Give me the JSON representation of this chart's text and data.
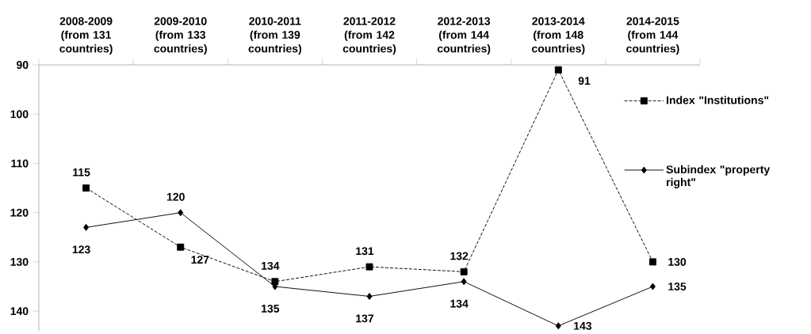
{
  "chart_data": {
    "type": "line",
    "categories": [
      "2008-2009 (from 131 countries)",
      "2009-2010 (from 133 countries)",
      "2010-2011 (from 139 countries)",
      "2011-2012 (from 142 countries)",
      "2012-2013 (from 144 countries)",
      "2013-2014 (from 148 countries)",
      "2014-2015 (from 144 countries)"
    ],
    "series": [
      {
        "name": "Index \"Institutions\"",
        "color": "#000000",
        "marker": "square",
        "line_style": "dashed",
        "values": [
          115,
          127,
          134,
          131,
          132,
          91,
          130
        ]
      },
      {
        "name": "Subindex \"property right\"",
        "color": "#000000",
        "marker": "diamond",
        "line_style": "solid",
        "values": [
          123,
          120,
          135,
          137,
          134,
          143,
          135
        ]
      }
    ],
    "ylim": [
      144,
      90
    ],
    "yticks": [
      90,
      100,
      110,
      120,
      130,
      140
    ],
    "grid": false,
    "legend": "right",
    "data_labels": true
  }
}
